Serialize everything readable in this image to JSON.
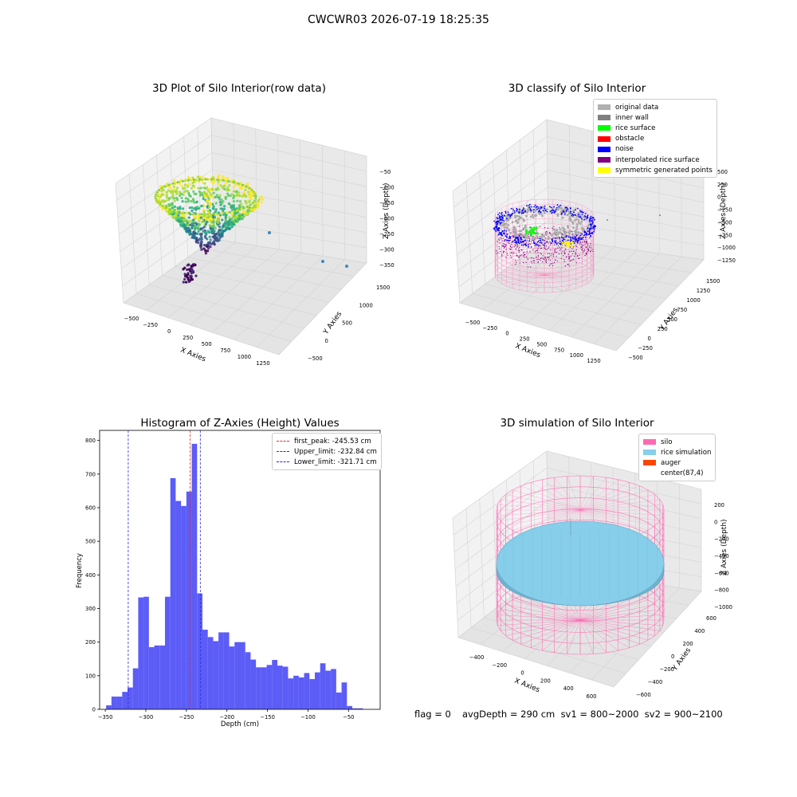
{
  "suptitle": "CWCWR03 2026-07-19 18:25:35",
  "footer": {
    "flag": "flag = 0",
    "stats": "avgDepth = 290 cm  sv1 = 800~2000  sv2 = 900~2100"
  },
  "colors": {
    "hist_bar": "#4a4af5",
    "first_peak": "#e03030",
    "limit_lines": "#2a2ae0",
    "silo_wire": "#ff69b4",
    "rice_sim": "#87ceeb",
    "noise": "#0000ff",
    "rice_surface": "#00ff00"
  },
  "chart_data": [
    {
      "type": "scatter",
      "subtype": "3d",
      "title": "3D Plot of Silo Interior(row data)",
      "xlabel": "X Axies",
      "ylabel": "Y Axies",
      "zlabel": "Z Axies (Depth)",
      "xticks": [
        "−500",
        "−250",
        "0",
        "250",
        "500",
        "750",
        "1000",
        "1250"
      ],
      "yticks": [
        "−500",
        "0",
        "500",
        "1000",
        "1500"
      ],
      "zticks": [
        "−50",
        "−100",
        "−150",
        "−200",
        "−250",
        "−300",
        "−350"
      ],
      "colormap": "viridis"
    },
    {
      "type": "scatter",
      "subtype": "3d",
      "title": "3D classify of Silo Interior",
      "xlabel": "X Axies",
      "ylabel": "Y Axies",
      "zlabel": "Z Axies (Depth)",
      "xticks": [
        "−500",
        "−250",
        "0",
        "250",
        "500",
        "750",
        "1000",
        "1250"
      ],
      "yticks": [
        "−500",
        "−250",
        "0",
        "250",
        "500",
        "750",
        "1000",
        "1250",
        "1500"
      ],
      "zticks": [
        "500",
        "250",
        "0",
        "−250",
        "−500",
        "−750",
        "−1000",
        "−1250"
      ],
      "legend": [
        {
          "label": "original data",
          "color": "#b0b0b0"
        },
        {
          "label": "inner wall",
          "color": "#808080"
        },
        {
          "label": "rice surface",
          "color": "#00ff00"
        },
        {
          "label": "obstacle",
          "color": "#ff0000"
        },
        {
          "label": "noise",
          "color": "#0000ff"
        },
        {
          "label": "interpolated rice surface",
          "color": "#800080"
        },
        {
          "label": "symmetric generated points",
          "color": "#ffff00"
        }
      ],
      "legend_position": "top-right"
    },
    {
      "type": "bar",
      "title": "Histogram of Z-Axies (Height) Values",
      "xlabel": "Depth (cm)",
      "ylabel": "Frequency",
      "xlim": [
        -357,
        -11
      ],
      "ylim": [
        0,
        830
      ],
      "xticks": [
        -350,
        -300,
        -250,
        -200,
        -150,
        -100,
        -50
      ],
      "yticks": [
        0,
        100,
        200,
        300,
        400,
        500,
        600,
        700,
        800
      ],
      "bin_start": -349,
      "bin_width": 6.6,
      "values": [
        12,
        38,
        38,
        52,
        65,
        122,
        333,
        335,
        185,
        190,
        190,
        335,
        688,
        620,
        605,
        648,
        790,
        345,
        237,
        215,
        203,
        229,
        229,
        187,
        200,
        200,
        170,
        148,
        125,
        125,
        132,
        147,
        130,
        127,
        92,
        100,
        95,
        108,
        90,
        110,
        137,
        115,
        120,
        50,
        80,
        10,
        3,
        3
      ],
      "vlines": [
        {
          "label": "first_peak: -245.53 cm",
          "x": -245.53,
          "color": "#e03030"
        },
        {
          "label": "Upper_limit: -232.84 cm",
          "x": -232.84,
          "color": "#2a2ae0"
        },
        {
          "label": "Lower_limit: -321.71 cm",
          "x": -321.71,
          "color": "#2a2ae0"
        }
      ],
      "legend_position": "top-right"
    },
    {
      "type": "scatter",
      "subtype": "3d",
      "title": "3D simulation of Silo Interior",
      "xlabel": "X Axies",
      "ylabel": "Y Axies",
      "zlabel": "Z Axies (Depth)",
      "xticks": [
        "−400",
        "−200",
        "0",
        "200",
        "400",
        "600"
      ],
      "yticks": [
        "−600",
        "−400",
        "−200",
        "0",
        "200",
        "400",
        "600"
      ],
      "zticks": [
        "200",
        "0",
        "−200",
        "−400",
        "−600",
        "−800",
        "−1000"
      ],
      "legend": [
        {
          "label": "silo",
          "color": "#ff69b4"
        },
        {
          "label": "rice simulation",
          "color": "#87ceeb"
        },
        {
          "label": "auger",
          "color": "#ff4500"
        },
        {
          "label": "center(87,4)",
          "color": ""
        }
      ],
      "legend_position": "top-right"
    }
  ]
}
